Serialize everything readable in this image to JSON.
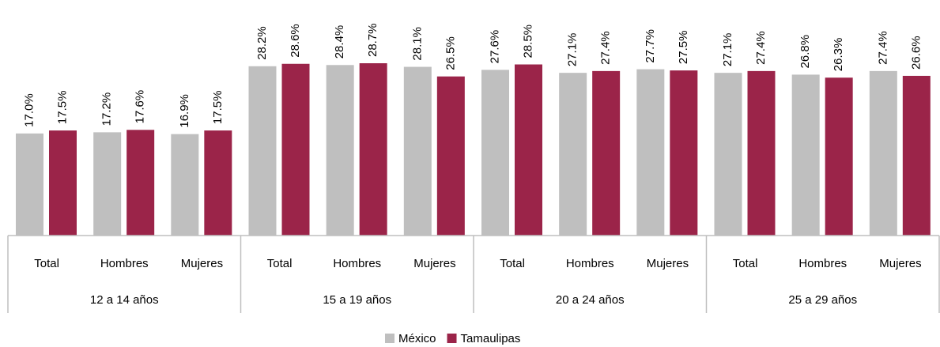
{
  "chart_data": {
    "type": "bar",
    "categories": [
      "Total",
      "Hombres",
      "Mujeres",
      "Total",
      "Hombres",
      "Mujeres",
      "Total",
      "Hombres",
      "Mujeres",
      "Total",
      "Hombres",
      "Mujeres"
    ],
    "groups": [
      "12 a 14 años",
      "15 a 19 años",
      "20 a 24 años",
      "25 a 29 años"
    ],
    "series": [
      {
        "name": "México",
        "color": "#bfbfbf",
        "values": [
          17.0,
          17.2,
          16.9,
          28.2,
          28.4,
          28.1,
          27.6,
          27.1,
          27.7,
          27.1,
          26.8,
          27.4
        ],
        "value_labels": [
          "17.0%",
          "17.2%",
          "16.9%",
          "28.2%",
          "28.4%",
          "28.1%",
          "27.6%",
          "27.1%",
          "27.7%",
          "27.1%",
          "26.8%",
          "27.4%"
        ]
      },
      {
        "name": "Tamaulipas",
        "color": "#9b2449",
        "values": [
          17.5,
          17.6,
          17.5,
          28.6,
          28.7,
          26.5,
          28.5,
          27.4,
          27.5,
          27.4,
          26.3,
          26.6
        ],
        "value_labels": [
          "17.5%",
          "17.6%",
          "17.5%",
          "28.6%",
          "28.7%",
          "26.5%",
          "28.5%",
          "27.4%",
          "27.5%",
          "27.4%",
          "26.3%",
          "26.6%"
        ]
      }
    ],
    "legend": "bottom"
  }
}
